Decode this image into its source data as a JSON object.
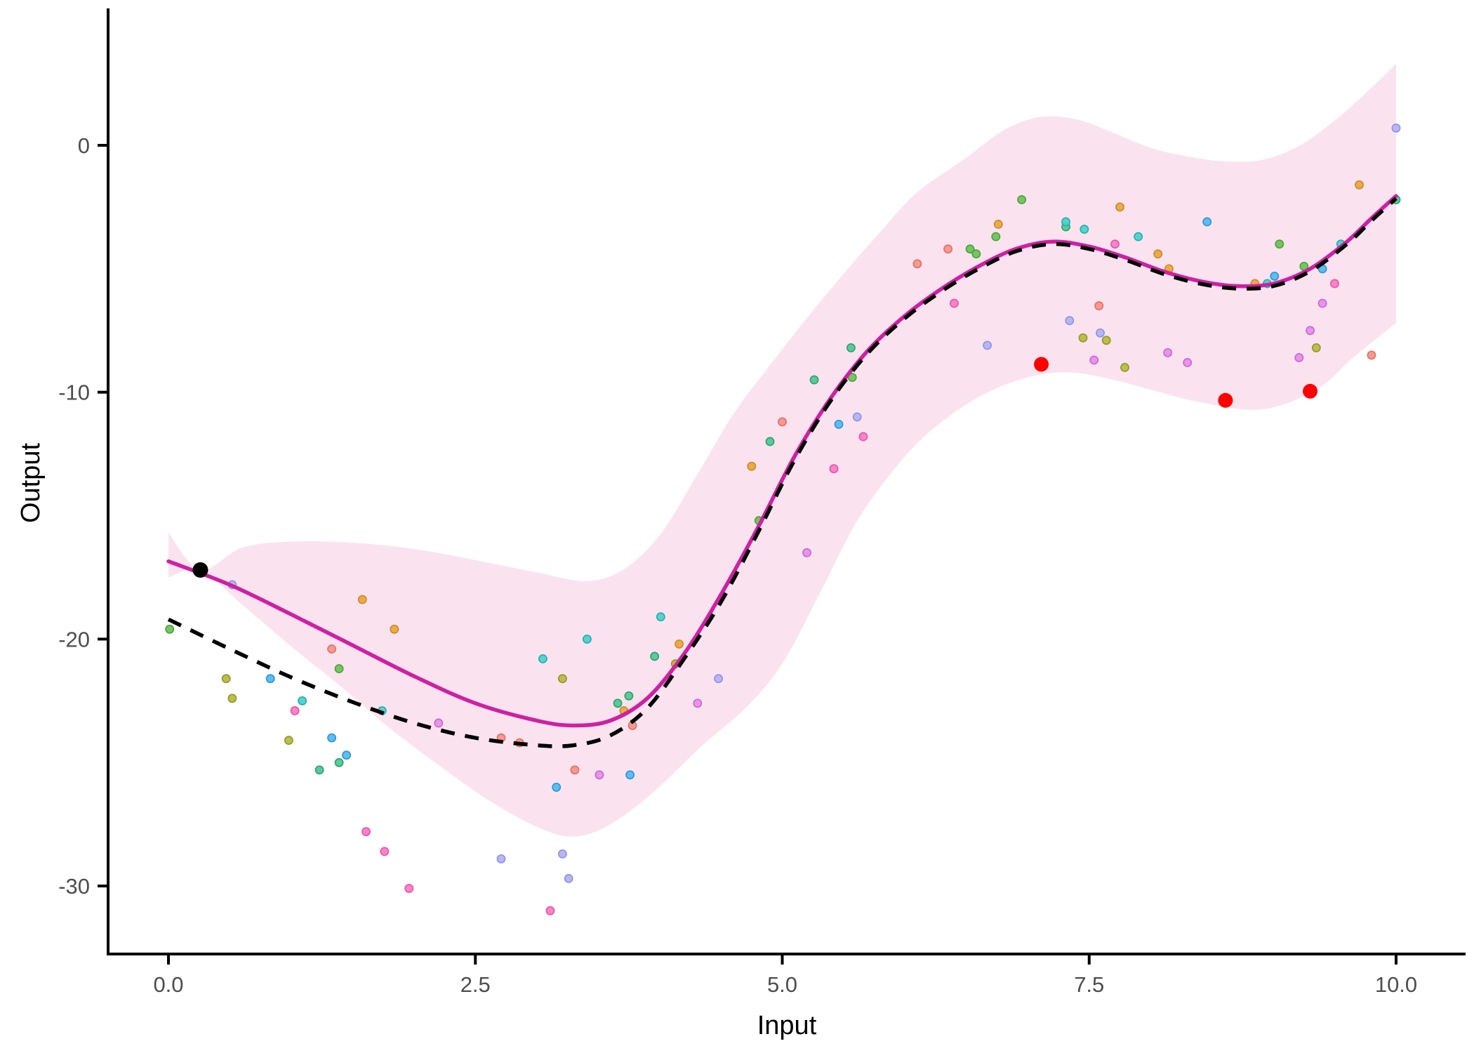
{
  "axes": {
    "x_label": "Input",
    "y_label": "Output"
  },
  "chart_data": {
    "type": "scatter",
    "title": "",
    "xlabel": "Input",
    "ylabel": "Output",
    "grid": false,
    "legend": false,
    "xlim": [
      -0.49,
      10.63
    ],
    "ylim": [
      -32.8,
      5.5
    ],
    "x_tick_values": [
      0,
      2.5,
      5,
      7.5,
      10
    ],
    "x_tick_labels": [
      "0.0",
      "2.5",
      "5.0",
      "7.5",
      "10.0"
    ],
    "y_tick_values": [
      0,
      -10,
      -20,
      -30
    ],
    "y_tick_labels": [
      "0",
      "-10",
      "-20",
      "-30"
    ],
    "colors": {
      "ribbon_fill": "#FAE3EF",
      "mean_line": "#CE20A2",
      "dashed_line": "#000000",
      "axis_line": "#000000",
      "tick_text": "#4d4d4d",
      "highlight": "#FF0000",
      "anchor": "#000000"
    },
    "ribbon": {
      "upper": [
        [
          0,
          -15.7
        ],
        [
          0.26,
          -17.2
        ],
        [
          0.6,
          -16.3
        ],
        [
          1,
          -16.05
        ],
        [
          1.5,
          -16.1
        ],
        [
          2,
          -16.35
        ],
        [
          2.5,
          -16.8
        ],
        [
          3,
          -17.3
        ],
        [
          3.4,
          -17.65
        ],
        [
          3.7,
          -17.2
        ],
        [
          4,
          -15.8
        ],
        [
          4.3,
          -13.4
        ],
        [
          4.6,
          -10.9
        ],
        [
          4.9,
          -8.9
        ],
        [
          5.2,
          -7.0
        ],
        [
          5.5,
          -5.2
        ],
        [
          5.8,
          -3.5
        ],
        [
          6.1,
          -1.9
        ],
        [
          6.5,
          -0.5
        ],
        [
          6.8,
          0.6
        ],
        [
          7.1,
          1.15
        ],
        [
          7.4,
          1.05
        ],
        [
          7.7,
          0.5
        ],
        [
          8,
          -0.1
        ],
        [
          8.3,
          -0.45
        ],
        [
          8.6,
          -0.65
        ],
        [
          8.9,
          -0.6
        ],
        [
          9.2,
          -0.05
        ],
        [
          9.5,
          1.0
        ],
        [
          9.75,
          2.1
        ],
        [
          10,
          3.3
        ]
      ],
      "lower": [
        [
          0,
          -17.5
        ],
        [
          0.26,
          -17.2
        ],
        [
          0.6,
          -18.6
        ],
        [
          1,
          -20.3
        ],
        [
          1.4,
          -21.9
        ],
        [
          1.8,
          -23.6
        ],
        [
          2.2,
          -25.1
        ],
        [
          2.6,
          -26.5
        ],
        [
          3.0,
          -27.6
        ],
        [
          3.3,
          -28.0
        ],
        [
          3.6,
          -27.5
        ],
        [
          3.95,
          -26.2
        ],
        [
          4.35,
          -24.3
        ],
        [
          4.7,
          -22.8
        ],
        [
          5.0,
          -21.0
        ],
        [
          5.3,
          -18.2
        ],
        [
          5.6,
          -15.3
        ],
        [
          5.9,
          -13.2
        ],
        [
          6.2,
          -11.6
        ],
        [
          6.6,
          -10.2
        ],
        [
          7.0,
          -9.4
        ],
        [
          7.35,
          -9.2
        ],
        [
          7.7,
          -9.5
        ],
        [
          8.0,
          -9.9
        ],
        [
          8.4,
          -10.4
        ],
        [
          8.9,
          -10.7
        ],
        [
          9.35,
          -9.9
        ],
        [
          9.65,
          -8.6
        ],
        [
          10,
          -7.2
        ]
      ]
    },
    "mean_line": [
      [
        0,
        -16.85
      ],
      [
        0.5,
        -17.8
      ],
      [
        1,
        -19.0
      ],
      [
        1.5,
        -20.25
      ],
      [
        2,
        -21.5
      ],
      [
        2.5,
        -22.6
      ],
      [
        3,
        -23.3
      ],
      [
        3.3,
        -23.5
      ],
      [
        3.6,
        -23.3
      ],
      [
        3.9,
        -22.4
      ],
      [
        4.2,
        -20.6
      ],
      [
        4.5,
        -18.2
      ],
      [
        4.8,
        -15.5
      ],
      [
        5.1,
        -12.6
      ],
      [
        5.4,
        -10.2
      ],
      [
        5.7,
        -8.3
      ],
      [
        6,
        -6.9
      ],
      [
        6.3,
        -5.8
      ],
      [
        6.6,
        -4.9
      ],
      [
        6.9,
        -4.2
      ],
      [
        7.2,
        -3.9
      ],
      [
        7.5,
        -4.1
      ],
      [
        7.8,
        -4.55
      ],
      [
        8.1,
        -5.1
      ],
      [
        8.4,
        -5.5
      ],
      [
        8.7,
        -5.7
      ],
      [
        9,
        -5.6
      ],
      [
        9.3,
        -5.0
      ],
      [
        9.6,
        -3.9
      ],
      [
        9.8,
        -2.95
      ],
      [
        10,
        -2.05
      ]
    ],
    "dashed_line": [
      [
        0,
        -19.2
      ],
      [
        0.5,
        -20.4
      ],
      [
        1,
        -21.55
      ],
      [
        1.5,
        -22.55
      ],
      [
        2,
        -23.4
      ],
      [
        2.5,
        -24.0
      ],
      [
        3,
        -24.3
      ],
      [
        3.3,
        -24.3
      ],
      [
        3.6,
        -23.9
      ],
      [
        3.9,
        -22.8
      ],
      [
        4.2,
        -20.8
      ],
      [
        4.5,
        -18.5
      ],
      [
        4.8,
        -15.7
      ],
      [
        5.1,
        -12.75
      ],
      [
        5.4,
        -10.3
      ],
      [
        5.7,
        -8.4
      ],
      [
        6,
        -7.0
      ],
      [
        6.3,
        -5.9
      ],
      [
        6.6,
        -5.0
      ],
      [
        6.9,
        -4.3
      ],
      [
        7.2,
        -4.0
      ],
      [
        7.5,
        -4.2
      ],
      [
        7.8,
        -4.65
      ],
      [
        8.1,
        -5.2
      ],
      [
        8.4,
        -5.6
      ],
      [
        8.7,
        -5.8
      ],
      [
        9,
        -5.7
      ],
      [
        9.3,
        -5.1
      ],
      [
        9.6,
        -4.0
      ],
      [
        9.8,
        -3.05
      ],
      [
        10,
        -2.15
      ]
    ],
    "scatter_series": [
      {
        "name": "green",
        "fill": "#6FC35C",
        "stroke": "#4CA53E",
        "points": [
          [
            0.01,
            -19.6
          ],
          [
            1.39,
            -21.2
          ],
          [
            4.81,
            -15.2
          ],
          [
            5.57,
            -9.4
          ],
          [
            6.53,
            -4.2
          ],
          [
            6.58,
            -4.4
          ],
          [
            6.74,
            -3.7
          ],
          [
            6.95,
            -2.2
          ],
          [
            9.05,
            -4.0
          ],
          [
            9.25,
            -4.9
          ]
        ]
      },
      {
        "name": "olive",
        "fill": "#B9BA3F",
        "stroke": "#97992A",
        "points": [
          [
            0.47,
            -21.6
          ],
          [
            0.52,
            -22.4
          ],
          [
            0.98,
            -24.1
          ],
          [
            3.21,
            -21.6
          ],
          [
            4.13,
            -21.0
          ],
          [
            7.45,
            -7.8
          ],
          [
            7.64,
            -7.9
          ],
          [
            7.79,
            -9.0
          ],
          [
            9.35,
            -8.2
          ]
        ]
      },
      {
        "name": "emerald",
        "fill": "#52C796",
        "stroke": "#2EA374",
        "points": [
          [
            1.23,
            -25.3
          ],
          [
            1.39,
            -25.0
          ],
          [
            3.66,
            -22.6
          ],
          [
            3.75,
            -22.3
          ],
          [
            3.96,
            -20.7
          ],
          [
            4.9,
            -12.0
          ],
          [
            5.26,
            -9.5
          ],
          [
            5.56,
            -8.2
          ],
          [
            7.31,
            -3.3
          ],
          [
            10.0,
            -2.2
          ]
        ]
      },
      {
        "name": "turquoise",
        "fill": "#4DD2CE",
        "stroke": "#27B0AC",
        "points": [
          [
            1.09,
            -22.5
          ],
          [
            1.74,
            -22.9
          ],
          [
            3.05,
            -20.8
          ],
          [
            3.41,
            -20.0
          ],
          [
            4.01,
            -19.1
          ],
          [
            7.31,
            -3.1
          ],
          [
            7.46,
            -3.4
          ],
          [
            7.9,
            -3.7
          ],
          [
            8.95,
            -5.6
          ],
          [
            9.55,
            -4.0
          ]
        ]
      },
      {
        "name": "sky-blue",
        "fill": "#55B9F0",
        "stroke": "#2E97D5",
        "points": [
          [
            0.83,
            -21.6
          ],
          [
            1.33,
            -24.0
          ],
          [
            1.45,
            -24.7
          ],
          [
            3.16,
            -26.0
          ],
          [
            3.76,
            -25.5
          ],
          [
            5.46,
            -11.3
          ],
          [
            8.46,
            -3.1
          ],
          [
            9.01,
            -5.3
          ],
          [
            9.4,
            -5.0
          ]
        ]
      },
      {
        "name": "periwinkle",
        "fill": "#B3B3F1",
        "stroke": "#9193E6",
        "points": [
          [
            0.52,
            -17.8
          ],
          [
            2.71,
            -28.9
          ],
          [
            3.21,
            -28.7
          ],
          [
            3.26,
            -29.7
          ],
          [
            4.48,
            -21.6
          ],
          [
            5.61,
            -11.0
          ],
          [
            6.67,
            -8.1
          ],
          [
            7.34,
            -7.1
          ],
          [
            7.59,
            -7.6
          ],
          [
            10.0,
            0.7
          ]
        ]
      },
      {
        "name": "orange",
        "fill": "#EBA83F",
        "stroke": "#CE8C28",
        "points": [
          [
            1.58,
            -18.4
          ],
          [
            1.84,
            -19.6
          ],
          [
            3.71,
            -22.9
          ],
          [
            4.16,
            -20.2
          ],
          [
            4.75,
            -13.0
          ],
          [
            6.76,
            -3.2
          ],
          [
            7.75,
            -2.5
          ],
          [
            8.06,
            -4.4
          ],
          [
            8.15,
            -5.0
          ],
          [
            8.85,
            -5.6
          ],
          [
            9.7,
            -1.6
          ]
        ]
      },
      {
        "name": "salmon",
        "fill": "#F5958A",
        "stroke": "#E4716A",
        "points": [
          [
            1.33,
            -20.4
          ],
          [
            2.71,
            -24.0
          ],
          [
            2.86,
            -24.2
          ],
          [
            3.31,
            -25.3
          ],
          [
            3.78,
            -23.5
          ],
          [
            5.0,
            -11.2
          ],
          [
            6.1,
            -4.8
          ],
          [
            6.35,
            -4.2
          ],
          [
            7.58,
            -6.5
          ],
          [
            9.8,
            -8.5
          ]
        ]
      },
      {
        "name": "hot-pink",
        "fill": "#F87FC4",
        "stroke": "#EF53AB",
        "points": [
          [
            1.03,
            -22.9
          ],
          [
            1.61,
            -27.8
          ],
          [
            1.76,
            -28.6
          ],
          [
            1.96,
            -30.1
          ],
          [
            3.11,
            -31.0
          ],
          [
            5.42,
            -13.1
          ],
          [
            5.66,
            -11.8
          ],
          [
            6.4,
            -6.4
          ],
          [
            7.71,
            -4.0
          ],
          [
            9.5,
            -5.6
          ]
        ]
      },
      {
        "name": "orchid",
        "fill": "#E590E9",
        "stroke": "#D165D8",
        "points": [
          [
            2.2,
            -23.4
          ],
          [
            3.51,
            -25.5
          ],
          [
            4.31,
            -22.6
          ],
          [
            5.2,
            -16.5
          ],
          [
            7.54,
            -8.7
          ],
          [
            8.14,
            -8.4
          ],
          [
            8.3,
            -8.8
          ],
          [
            9.21,
            -8.6
          ],
          [
            9.3,
            -7.5
          ],
          [
            9.4,
            -6.4
          ]
        ]
      }
    ],
    "anchor_point": {
      "x": 0.26,
      "y": -17.2,
      "r": 11
    },
    "highlight_points": [
      {
        "x": 7.11,
        "y": -8.87,
        "r": 10.5
      },
      {
        "x": 8.61,
        "y": -10.33,
        "r": 10.5
      },
      {
        "x": 9.3,
        "y": -9.96,
        "r": 10.5
      }
    ],
    "point_radius": 5.6,
    "point_stroke_width": 1.7,
    "line_width": 5.5,
    "dash_pattern": [
      20,
      15
    ]
  }
}
